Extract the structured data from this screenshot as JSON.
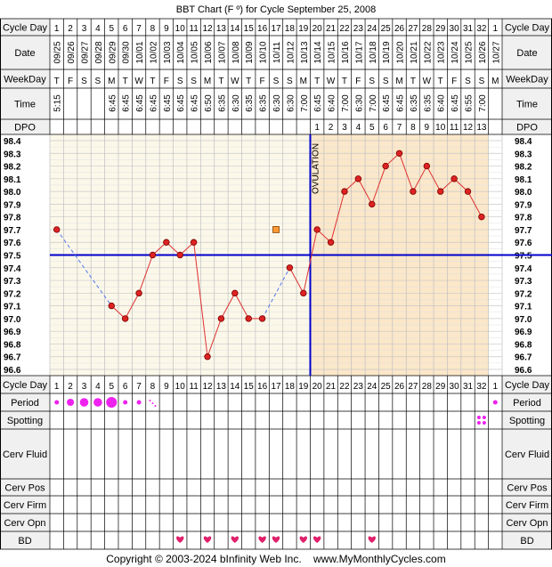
{
  "title": "BBT Chart (F º) for Cycle September 25, 2008",
  "footer": "Copyright © 2003-2024 bInfinity Web Inc.    www.MyMonthlyCycles.com",
  "row_labels": {
    "cycle_day": "Cycle Day",
    "date": "Date",
    "weekday": "WeekDay",
    "time": "Time",
    "dpo": "DPO",
    "period": "Period",
    "spotting": "Spotting",
    "cerv_fluid": "Cerv Fluid",
    "cerv_pos": "Cerv Pos",
    "cerv_firm": "Cerv Firm",
    "cerv_opn": "Cerv Opn",
    "bd": "BD"
  },
  "ovulation_label": "OVULATION",
  "colors": {
    "pre_ovulation_bg": "#fbf8ea",
    "post_ovulation_bg": "#fbe7c9",
    "coverline": "#0000cc",
    "temp_line": "#e03030",
    "temp_point": "#dd2222",
    "period_dot": "#ee22ee",
    "bd_heart": "#e0206a",
    "header_bg": "#f0f0f0"
  },
  "chart_data": {
    "type": "line",
    "title": "BBT Chart (F º) for Cycle September 25, 2008",
    "ylim": [
      96.6,
      98.4
    ],
    "y_ticks": [
      "98.4",
      "98.3",
      "98.2",
      "98.1",
      "98.0",
      "97.9",
      "97.8",
      "97.7",
      "97.6",
      "97.5",
      "97.4",
      "97.3",
      "97.2",
      "97.1",
      "97.0",
      "96.9",
      "96.8",
      "96.7",
      "96.6"
    ],
    "coverline": 97.5,
    "ovulation_day": 19,
    "cycle_days": [
      "1",
      "2",
      "3",
      "4",
      "5",
      "6",
      "7",
      "8",
      "9",
      "10",
      "11",
      "12",
      "13",
      "14",
      "15",
      "16",
      "17",
      "18",
      "19",
      "20",
      "21",
      "22",
      "23",
      "24",
      "25",
      "26",
      "27",
      "28",
      "29",
      "30",
      "31",
      "32",
      "1"
    ],
    "dates": [
      "09/25",
      "09/26",
      "09/27",
      "09/28",
      "09/29",
      "09/30",
      "10/01",
      "10/02",
      "10/03",
      "10/04",
      "10/05",
      "10/06",
      "10/07",
      "10/08",
      "10/09",
      "10/10",
      "10/11",
      "10/12",
      "10/13",
      "10/14",
      "10/15",
      "10/16",
      "10/17",
      "10/18",
      "10/19",
      "10/20",
      "10/21",
      "10/22",
      "10/23",
      "10/24",
      "10/25",
      "10/26",
      "10/27"
    ],
    "weekdays": [
      "T",
      "F",
      "S",
      "S",
      "M",
      "T",
      "W",
      "T",
      "F",
      "S",
      "S",
      "M",
      "T",
      "W",
      "T",
      "F",
      "S",
      "S",
      "M",
      "T",
      "W",
      "T",
      "F",
      "S",
      "S",
      "M",
      "T",
      "W",
      "T",
      "F",
      "S",
      "S",
      "M"
    ],
    "times": [
      "5:15",
      "",
      "",
      "",
      "6:45",
      "6:45",
      "6:45",
      "6:45",
      "6:45",
      "6:45",
      "6:45",
      "6:50",
      "6:35",
      "6:30",
      "6:35",
      "6:35",
      "6:30",
      "6:30",
      "7:00",
      "6:45",
      "6:40",
      "7:00",
      "6:30",
      "7:00",
      "6:45",
      "6:45",
      "6:35",
      "6:35",
      "6:40",
      "6:45",
      "6:55",
      "7:00",
      ""
    ],
    "dpo": [
      "",
      "",
      "",
      "",
      "",
      "",
      "",
      "",
      "",
      "",
      "",
      "",
      "",
      "",
      "",
      "",
      "",
      "",
      "",
      "1",
      "2",
      "3",
      "4",
      "5",
      "6",
      "7",
      "8",
      "9",
      "10",
      "11",
      "12",
      "13",
      ""
    ],
    "temps": [
      97.7,
      null,
      null,
      null,
      97.1,
      97.0,
      97.2,
      97.5,
      97.6,
      97.5,
      97.6,
      96.7,
      97.0,
      97.2,
      97.0,
      97.0,
      null,
      97.4,
      97.2,
      97.7,
      97.6,
      98.0,
      98.1,
      97.9,
      98.2,
      98.3,
      98.0,
      98.2,
      98.0,
      98.1,
      98.0,
      97.8,
      null
    ],
    "extra_point": {
      "day": 17,
      "value": 97.7
    },
    "period": [
      "small",
      "medium",
      "large",
      "large",
      "xlarge",
      "small",
      "small",
      "spot",
      "",
      "",
      "",
      "",
      "",
      "",
      "",
      "",
      "",
      "",
      "",
      "",
      "",
      "",
      "",
      "",
      "",
      "",
      "",
      "",
      "",
      "",
      "",
      "",
      "small"
    ],
    "spotting": [
      "",
      "",
      "",
      "",
      "",
      "",
      "",
      "",
      "",
      "",
      "",
      "",
      "",
      "",
      "",
      "",
      "",
      "",
      "",
      "",
      "",
      "",
      "",
      "",
      "",
      "",
      "",
      "",
      "",
      "",
      "",
      "yes",
      ""
    ],
    "bd": [
      "",
      "",
      "",
      "",
      "",
      "",
      "",
      "",
      "",
      "yes",
      "",
      "yes",
      "",
      "yes",
      "",
      "yes",
      "yes",
      "",
      "yes",
      "yes",
      "",
      "",
      "",
      "yes",
      "",
      "",
      "",
      "",
      "",
      "",
      "",
      "",
      ""
    ]
  }
}
